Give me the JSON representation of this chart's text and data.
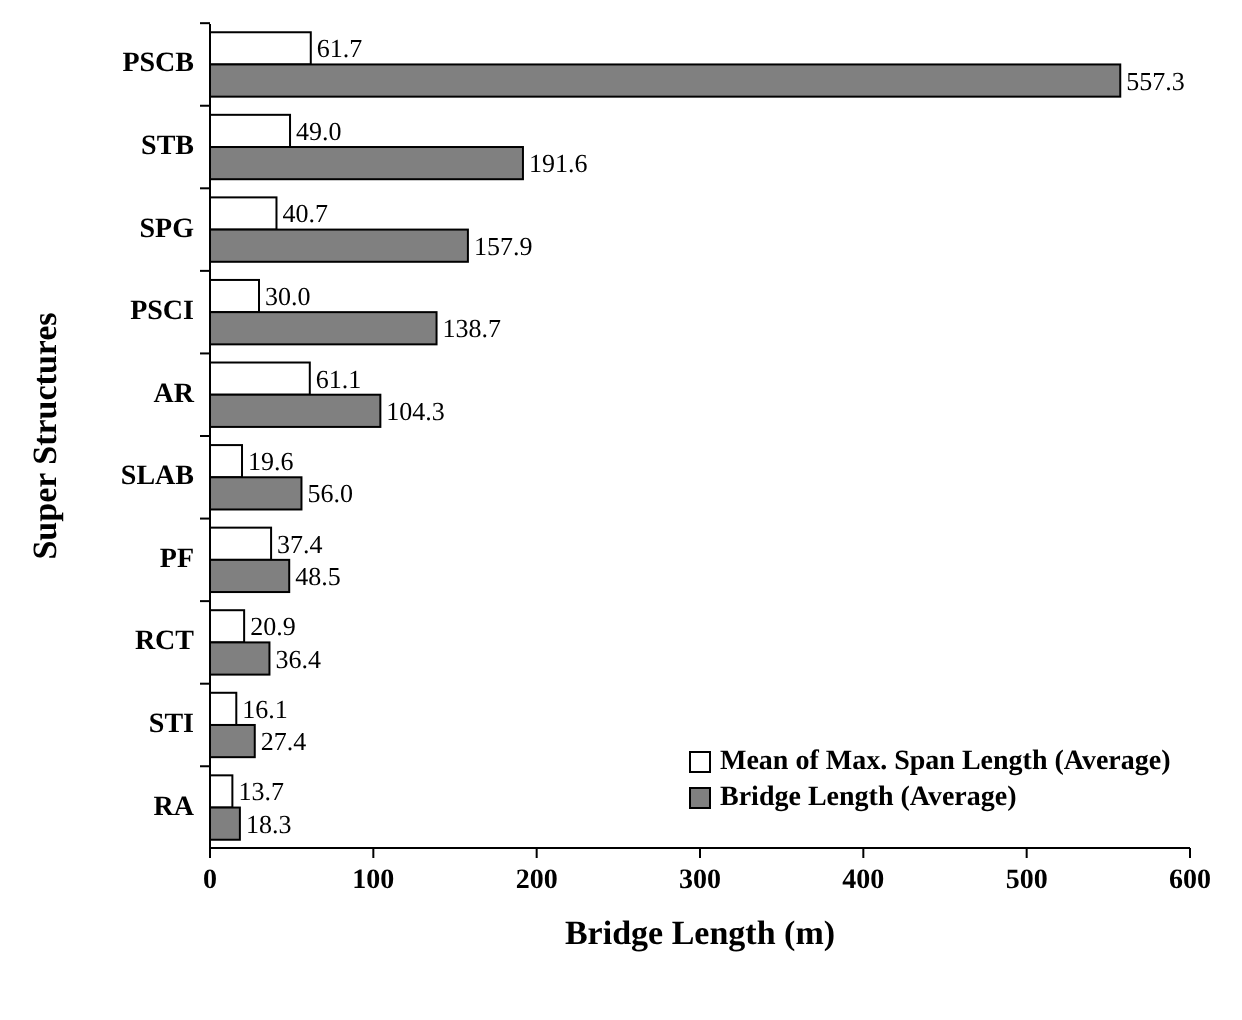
{
  "chart_data": {
    "type": "bar",
    "orientation": "horizontal",
    "xlabel": "Bridge Length (m)",
    "ylabel": "Super Structures",
    "categories": [
      "PSCB",
      "STB",
      "SPG",
      "PSCI",
      "AR",
      "SLAB",
      "PF",
      "RCT",
      "STI",
      "RA"
    ],
    "series": [
      {
        "name": "Mean of Max. Span Length (Average)",
        "color": "#ffffff",
        "values": [
          61.7,
          49.0,
          40.7,
          30.0,
          61.1,
          19.6,
          37.4,
          20.9,
          16.1,
          13.7
        ]
      },
      {
        "name": "Bridge Length (Average)",
        "color": "#808080",
        "values": [
          557.3,
          191.6,
          157.9,
          138.7,
          104.3,
          56.0,
          48.5,
          36.4,
          27.4,
          18.3
        ]
      }
    ],
    "value_labels": [
      [
        "61.7",
        "49.0",
        "40.7",
        "30.0",
        "61.1",
        "19.6",
        "37.4",
        "20.9",
        "16.1",
        "13.7"
      ],
      [
        "557.3",
        "191.6",
        "157.9",
        "138.7",
        "104.3",
        "56.0",
        "48.5",
        "36.4",
        "27.4",
        "18.3"
      ]
    ],
    "xlim": [
      0,
      600
    ],
    "xticks": [
      0,
      100,
      200,
      300,
      400,
      500,
      600
    ],
    "legend": "bottom right",
    "grid": false
  }
}
